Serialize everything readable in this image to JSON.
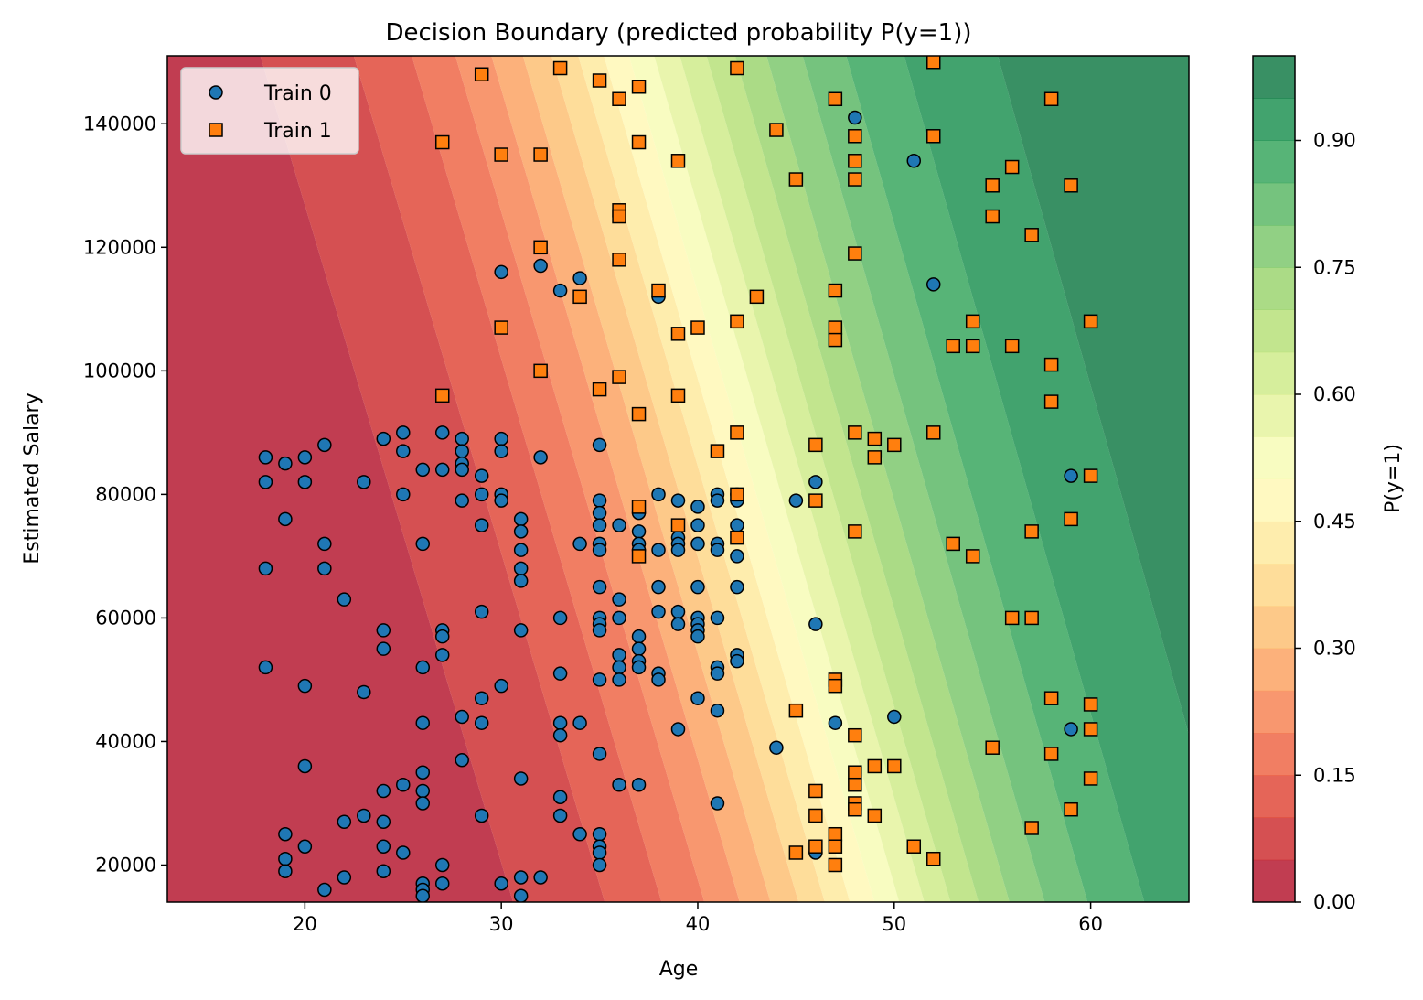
{
  "chart_data": {
    "type": "scatter",
    "title": "Decision Boundary (predicted probability P(y=1))",
    "xlabel": "Age",
    "ylabel": "Estimated Salary",
    "xlim": [
      13,
      65
    ],
    "ylim": [
      14000,
      151000
    ],
    "xticks": [
      20,
      30,
      40,
      50,
      60
    ],
    "yticks": [
      20000,
      40000,
      60000,
      80000,
      100000,
      120000,
      140000
    ],
    "legend": {
      "position": "top-left",
      "entries": [
        "Train 0",
        "Train 1"
      ]
    },
    "colorbar": {
      "label": "P(y=1)",
      "ticks": [
        "0.00",
        "0.15",
        "0.30",
        "0.45",
        "0.60",
        "0.75",
        "0.90"
      ],
      "range": [
        0,
        1
      ]
    },
    "background": {
      "type": "contourf",
      "colormap": "RdYlGn",
      "levels": 20,
      "p_half_line": [
        [
          36.5,
          151000
        ],
        [
          48.8,
          14000
        ]
      ],
      "p_zero_line": [
        [
          11.0,
          151000
        ],
        [
          24.0,
          14000
        ]
      ],
      "p_one_line": [
        [
          62.0,
          151000
        ],
        [
          74.0,
          14000
        ]
      ]
    },
    "series": [
      {
        "name": "Train 0",
        "marker": "circle",
        "color": "#1f77b4",
        "points": [
          [
            18,
            86000
          ],
          [
            18,
            82000
          ],
          [
            18,
            68000
          ],
          [
            18,
            52000
          ],
          [
            19,
            85000
          ],
          [
            19,
            76000
          ],
          [
            19,
            25000
          ],
          [
            19,
            21000
          ],
          [
            19,
            19000
          ],
          [
            20,
            86000
          ],
          [
            20,
            82000
          ],
          [
            20,
            49000
          ],
          [
            20,
            36000
          ],
          [
            20,
            23000
          ],
          [
            21,
            88000
          ],
          [
            21,
            72000
          ],
          [
            21,
            68000
          ],
          [
            21,
            16000
          ],
          [
            22,
            63000
          ],
          [
            22,
            27000
          ],
          [
            22,
            18000
          ],
          [
            23,
            82000
          ],
          [
            23,
            48000
          ],
          [
            23,
            28000
          ],
          [
            24,
            89000
          ],
          [
            24,
            58000
          ],
          [
            24,
            55000
          ],
          [
            24,
            32000
          ],
          [
            24,
            27000
          ],
          [
            24,
            23000
          ],
          [
            24,
            19000
          ],
          [
            25,
            90000
          ],
          [
            25,
            87000
          ],
          [
            25,
            80000
          ],
          [
            25,
            33000
          ],
          [
            25,
            22000
          ],
          [
            26,
            84000
          ],
          [
            26,
            72000
          ],
          [
            26,
            52000
          ],
          [
            26,
            43000
          ],
          [
            26,
            35000
          ],
          [
            26,
            32000
          ],
          [
            26,
            30000
          ],
          [
            26,
            17000
          ],
          [
            26,
            16000
          ],
          [
            26,
            15000
          ],
          [
            27,
            90000
          ],
          [
            27,
            84000
          ],
          [
            27,
            58000
          ],
          [
            27,
            57000
          ],
          [
            27,
            54000
          ],
          [
            27,
            20000
          ],
          [
            27,
            17000
          ],
          [
            28,
            89000
          ],
          [
            28,
            87000
          ],
          [
            28,
            85000
          ],
          [
            28,
            84000
          ],
          [
            28,
            79000
          ],
          [
            28,
            44000
          ],
          [
            28,
            37000
          ],
          [
            29,
            83000
          ],
          [
            29,
            80000
          ],
          [
            29,
            75000
          ],
          [
            29,
            61000
          ],
          [
            29,
            47000
          ],
          [
            29,
            43000
          ],
          [
            29,
            28000
          ],
          [
            30,
            116000
          ],
          [
            30,
            89000
          ],
          [
            30,
            87000
          ],
          [
            30,
            80000
          ],
          [
            30,
            79000
          ],
          [
            30,
            49000
          ],
          [
            30,
            17000
          ],
          [
            31,
            76000
          ],
          [
            31,
            74000
          ],
          [
            31,
            71000
          ],
          [
            31,
            68000
          ],
          [
            31,
            66000
          ],
          [
            31,
            58000
          ],
          [
            31,
            34000
          ],
          [
            31,
            18000
          ],
          [
            31,
            15000
          ],
          [
            32,
            117000
          ],
          [
            32,
            86000
          ],
          [
            32,
            18000
          ],
          [
            33,
            113000
          ],
          [
            33,
            60000
          ],
          [
            33,
            51000
          ],
          [
            33,
            43000
          ],
          [
            33,
            41000
          ],
          [
            33,
            31000
          ],
          [
            33,
            28000
          ],
          [
            34,
            115000
          ],
          [
            34,
            72000
          ],
          [
            34,
            43000
          ],
          [
            34,
            25000
          ],
          [
            35,
            88000
          ],
          [
            35,
            79000
          ],
          [
            35,
            77000
          ],
          [
            35,
            75000
          ],
          [
            35,
            72000
          ],
          [
            35,
            71000
          ],
          [
            35,
            65000
          ],
          [
            35,
            60000
          ],
          [
            35,
            59000
          ],
          [
            35,
            58000
          ],
          [
            35,
            50000
          ],
          [
            35,
            38000
          ],
          [
            35,
            25000
          ],
          [
            35,
            23000
          ],
          [
            35,
            22000
          ],
          [
            35,
            20000
          ],
          [
            36,
            75000
          ],
          [
            36,
            63000
          ],
          [
            36,
            60000
          ],
          [
            36,
            54000
          ],
          [
            36,
            52000
          ],
          [
            36,
            50000
          ],
          [
            36,
            33000
          ],
          [
            37,
            77000
          ],
          [
            37,
            74000
          ],
          [
            37,
            72000
          ],
          [
            37,
            71000
          ],
          [
            37,
            57000
          ],
          [
            37,
            55000
          ],
          [
            37,
            53000
          ],
          [
            37,
            52000
          ],
          [
            37,
            33000
          ],
          [
            38,
            112000
          ],
          [
            38,
            80000
          ],
          [
            38,
            71000
          ],
          [
            38,
            65000
          ],
          [
            38,
            61000
          ],
          [
            38,
            51000
          ],
          [
            38,
            50000
          ],
          [
            39,
            79000
          ],
          [
            39,
            73000
          ],
          [
            39,
            72000
          ],
          [
            39,
            71000
          ],
          [
            39,
            61000
          ],
          [
            39,
            59000
          ],
          [
            39,
            42000
          ],
          [
            40,
            78000
          ],
          [
            40,
            75000
          ],
          [
            40,
            72000
          ],
          [
            40,
            65000
          ],
          [
            40,
            60000
          ],
          [
            40,
            59000
          ],
          [
            40,
            58000
          ],
          [
            40,
            57000
          ],
          [
            40,
            47000
          ],
          [
            41,
            80000
          ],
          [
            41,
            79000
          ],
          [
            41,
            72000
          ],
          [
            41,
            71000
          ],
          [
            41,
            60000
          ],
          [
            41,
            52000
          ],
          [
            41,
            51000
          ],
          [
            41,
            45000
          ],
          [
            41,
            30000
          ],
          [
            42,
            80000
          ],
          [
            42,
            79000
          ],
          [
            42,
            75000
          ],
          [
            42,
            70000
          ],
          [
            42,
            65000
          ],
          [
            42,
            54000
          ],
          [
            42,
            53000
          ],
          [
            44,
            39000
          ],
          [
            45,
            79000
          ],
          [
            46,
            82000
          ],
          [
            46,
            59000
          ],
          [
            46,
            22000
          ],
          [
            47,
            43000
          ],
          [
            48,
            141000
          ],
          [
            50,
            44000
          ],
          [
            51,
            134000
          ],
          [
            52,
            114000
          ],
          [
            59,
            83000
          ],
          [
            59,
            42000
          ]
        ]
      },
      {
        "name": "Train 1",
        "marker": "square",
        "color": "#ff7f0e",
        "points": [
          [
            27,
            137000
          ],
          [
            27,
            96000
          ],
          [
            29,
            148000
          ],
          [
            30,
            135000
          ],
          [
            30,
            107000
          ],
          [
            32,
            135000
          ],
          [
            32,
            120000
          ],
          [
            32,
            100000
          ],
          [
            33,
            149000
          ],
          [
            34,
            112000
          ],
          [
            35,
            147000
          ],
          [
            35,
            97000
          ],
          [
            36,
            144000
          ],
          [
            36,
            126000
          ],
          [
            36,
            125000
          ],
          [
            36,
            118000
          ],
          [
            36,
            99000
          ],
          [
            37,
            146000
          ],
          [
            37,
            137000
          ],
          [
            37,
            93000
          ],
          [
            37,
            78000
          ],
          [
            37,
            70000
          ],
          [
            38,
            113000
          ],
          [
            39,
            134000
          ],
          [
            39,
            106000
          ],
          [
            39,
            96000
          ],
          [
            39,
            75000
          ],
          [
            40,
            107000
          ],
          [
            41,
            87000
          ],
          [
            42,
            149000
          ],
          [
            42,
            108000
          ],
          [
            42,
            90000
          ],
          [
            42,
            80000
          ],
          [
            42,
            73000
          ],
          [
            43,
            112000
          ],
          [
            44,
            139000
          ],
          [
            45,
            131000
          ],
          [
            45,
            45000
          ],
          [
            45,
            22000
          ],
          [
            46,
            88000
          ],
          [
            46,
            79000
          ],
          [
            46,
            32000
          ],
          [
            46,
            28000
          ],
          [
            46,
            23000
          ],
          [
            47,
            144000
          ],
          [
            47,
            113000
          ],
          [
            47,
            107000
          ],
          [
            47,
            105000
          ],
          [
            47,
            50000
          ],
          [
            47,
            49000
          ],
          [
            47,
            25000
          ],
          [
            47,
            23000
          ],
          [
            47,
            20000
          ],
          [
            48,
            138000
          ],
          [
            48,
            134000
          ],
          [
            48,
            131000
          ],
          [
            48,
            119000
          ],
          [
            48,
            90000
          ],
          [
            48,
            74000
          ],
          [
            48,
            41000
          ],
          [
            48,
            35000
          ],
          [
            48,
            33000
          ],
          [
            48,
            30000
          ],
          [
            48,
            29000
          ],
          [
            49,
            89000
          ],
          [
            49,
            86000
          ],
          [
            49,
            36000
          ],
          [
            49,
            28000
          ],
          [
            50,
            88000
          ],
          [
            50,
            36000
          ],
          [
            51,
            23000
          ],
          [
            52,
            150000
          ],
          [
            52,
            138000
          ],
          [
            52,
            90000
          ],
          [
            52,
            21000
          ],
          [
            53,
            104000
          ],
          [
            53,
            72000
          ],
          [
            54,
            108000
          ],
          [
            54,
            104000
          ],
          [
            54,
            70000
          ],
          [
            55,
            130000
          ],
          [
            55,
            125000
          ],
          [
            55,
            39000
          ],
          [
            56,
            133000
          ],
          [
            56,
            104000
          ],
          [
            56,
            60000
          ],
          [
            57,
            122000
          ],
          [
            57,
            74000
          ],
          [
            57,
            60000
          ],
          [
            57,
            26000
          ],
          [
            58,
            144000
          ],
          [
            58,
            101000
          ],
          [
            58,
            95000
          ],
          [
            58,
            47000
          ],
          [
            58,
            38000
          ],
          [
            59,
            130000
          ],
          [
            59,
            76000
          ],
          [
            59,
            29000
          ],
          [
            60,
            108000
          ],
          [
            60,
            83000
          ],
          [
            60,
            46000
          ],
          [
            60,
            42000
          ],
          [
            60,
            34000
          ]
        ]
      }
    ]
  }
}
